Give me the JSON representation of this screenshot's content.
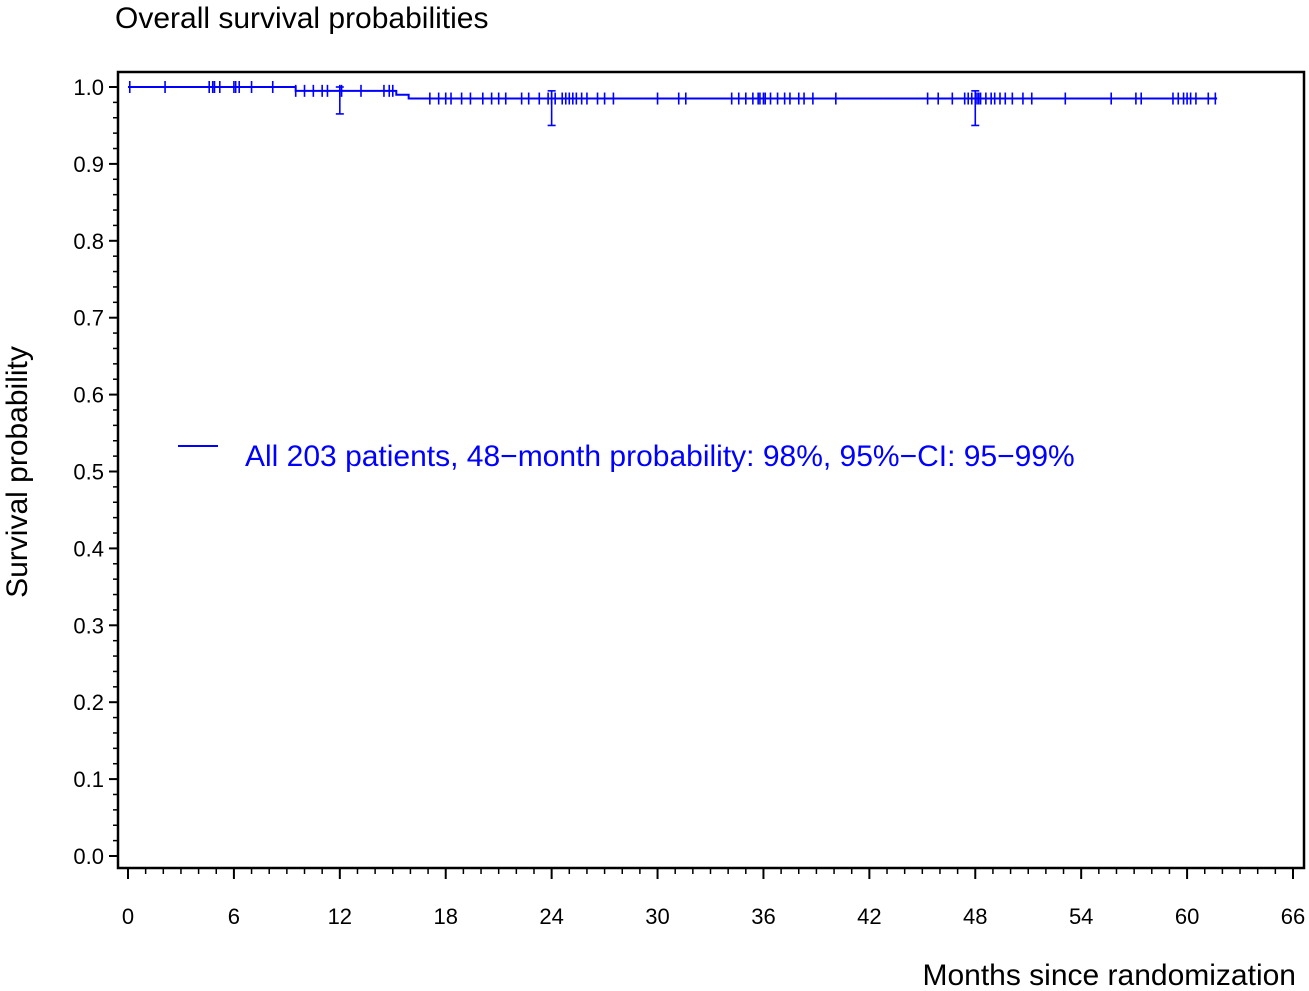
{
  "chart_data": {
    "type": "line",
    "title": "Overall survival probabilities",
    "xlabel": "Months since randomization",
    "ylabel": "Survival probability",
    "xlim": [
      0,
      66
    ],
    "ylim": [
      0,
      1
    ],
    "x_ticks": [
      "0",
      "6",
      "12",
      "18",
      "24",
      "30",
      "36",
      "42",
      "48",
      "54",
      "60",
      "66"
    ],
    "y_ticks": [
      "0.0",
      "0.1",
      "0.2",
      "0.3",
      "0.4",
      "0.5",
      "0.6",
      "0.7",
      "0.8",
      "0.9",
      "1.0"
    ],
    "grid": false,
    "legend_position": "center",
    "colors": {
      "series": "#0000ff",
      "axis": "#000000"
    },
    "series": [
      {
        "name": "All 203 patients, 48−month probability: 98%, 95%−CI: 95−99%",
        "steps": [
          {
            "x": 0,
            "y": 1.0
          },
          {
            "x": 9.5,
            "y": 0.995
          },
          {
            "x": 15.2,
            "y": 0.99
          },
          {
            "x": 15.9,
            "y": 0.985
          },
          {
            "x": 61.7,
            "y": 0.985
          }
        ],
        "censored": [
          0.1,
          2.1,
          4.6,
          4.8,
          4.9,
          5.2,
          6.0,
          6.1,
          6.3,
          7.0,
          8.2,
          9.5,
          10.0,
          10.5,
          11.0,
          11.3,
          12.0,
          12.1,
          13.2,
          14.5,
          14.8,
          15.0,
          17.1,
          17.6,
          18.0,
          18.3,
          18.9,
          19.4,
          20.1,
          20.6,
          21.0,
          21.4,
          22.3,
          22.7,
          23.3,
          23.8,
          24.0,
          24.2,
          24.6,
          24.8,
          25.0,
          25.2,
          25.4,
          25.7,
          26.0,
          26.6,
          27.0,
          27.5,
          30.0,
          31.2,
          31.6,
          34.2,
          34.6,
          35.0,
          35.4,
          35.7,
          35.8,
          36.0,
          36.1,
          36.4,
          36.8,
          37.2,
          37.5,
          38.0,
          38.3,
          38.8,
          40.1,
          45.3,
          45.9,
          46.7,
          47.4,
          47.6,
          47.8,
          48.0,
          48.1,
          48.2,
          48.3,
          48.6,
          48.9,
          49.1,
          49.4,
          49.7,
          50.1,
          50.7,
          51.2,
          53.1,
          55.7,
          57.1,
          57.4,
          59.2,
          59.5,
          59.8,
          60.0,
          60.2,
          60.5,
          61.2,
          61.6
        ],
        "ci_bars": [
          {
            "x": 12,
            "lower": 0.965,
            "upper": 1.0
          },
          {
            "x": 24,
            "lower": 0.95,
            "upper": 0.995
          },
          {
            "x": 48,
            "lower": 0.95,
            "upper": 0.995
          }
        ]
      }
    ]
  }
}
